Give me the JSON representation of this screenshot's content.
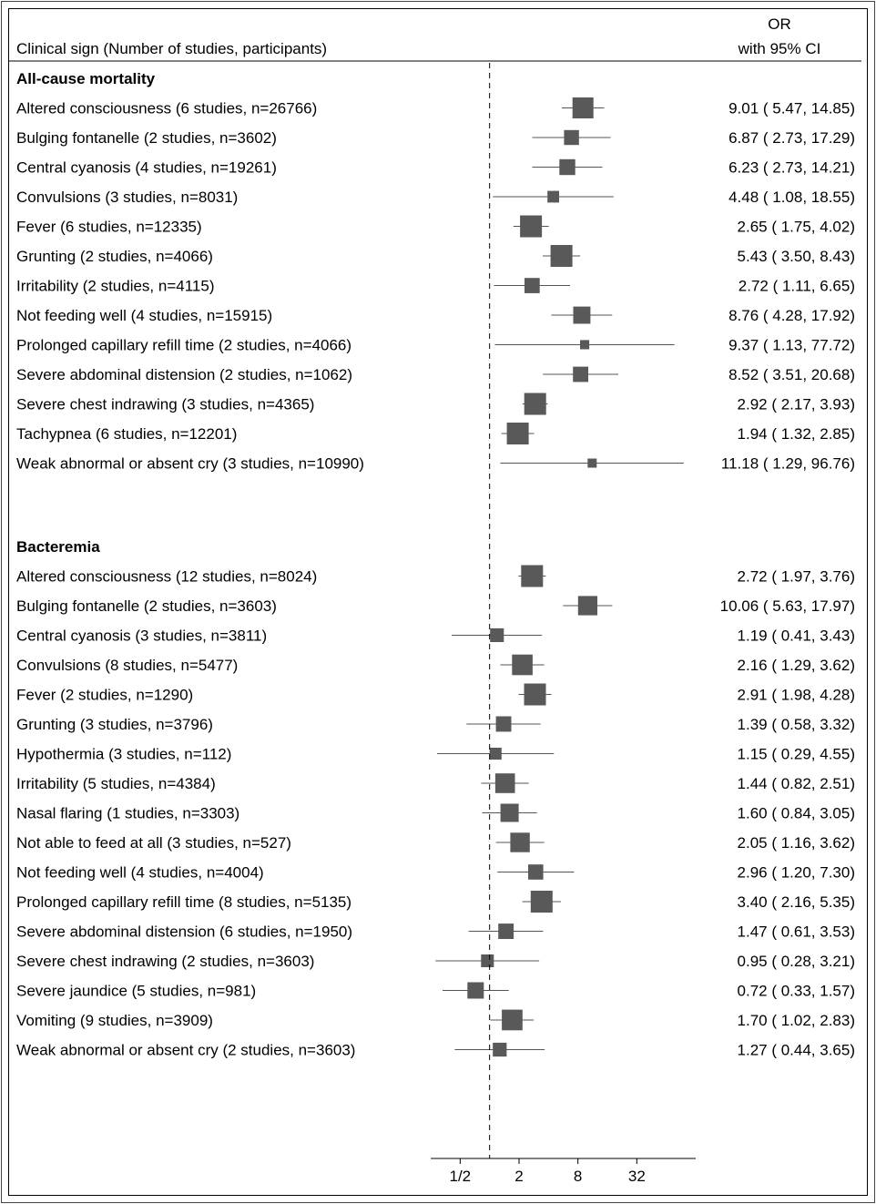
{
  "header": {
    "left": "Clinical sign (Number of studies, participants)",
    "right_line1": "OR",
    "right_line2": "with 95% CI"
  },
  "chart_data": {
    "type": "forest",
    "scale": "log2",
    "null_line": 1,
    "xlim": [
      0.25,
      128
    ],
    "x_ticks": [
      {
        "value": 0.5,
        "label": "1/2"
      },
      {
        "value": 2,
        "label": "2"
      },
      {
        "value": 8,
        "label": "8"
      },
      {
        "value": 32,
        "label": "32"
      }
    ],
    "groups": [
      {
        "title": "All-cause mortality",
        "rows": [
          {
            "label": "Altered consciousness (6 studies, n=26766)",
            "or": 9.01,
            "lo": 5.47,
            "hi": 14.85,
            "text": "9.01 ( 5.47,  14.85)"
          },
          {
            "label": "Bulging fontanelle (2 studies, n=3602)",
            "or": 6.87,
            "lo": 2.73,
            "hi": 17.29,
            "text": "6.87 ( 2.73,  17.29)"
          },
          {
            "label": "Central cyanosis (4 studies, n=19261)",
            "or": 6.23,
            "lo": 2.73,
            "hi": 14.21,
            "text": "6.23 ( 2.73,  14.21)"
          },
          {
            "label": "Convulsions (3 studies, n=8031)",
            "or": 4.48,
            "lo": 1.08,
            "hi": 18.55,
            "text": "4.48 ( 1.08,  18.55)"
          },
          {
            "label": "Fever (6 studies, n=12335)",
            "or": 2.65,
            "lo": 1.75,
            "hi": 4.02,
            "text": "2.65 ( 1.75,    4.02)"
          },
          {
            "label": "Grunting (2 studies, n=4066)",
            "or": 5.43,
            "lo": 3.5,
            "hi": 8.43,
            "text": "5.43 ( 3.50,    8.43)"
          },
          {
            "label": "Irritability (2 studies, n=4115)",
            "or": 2.72,
            "lo": 1.11,
            "hi": 6.65,
            "text": "2.72 ( 1.11,    6.65)"
          },
          {
            "label": "Not feeding well (4 studies, n=15915)",
            "or": 8.76,
            "lo": 4.28,
            "hi": 17.92,
            "text": "8.76 ( 4.28,  17.92)"
          },
          {
            "label": "Prolonged capillary refill time (2 studies, n=4066)",
            "or": 9.37,
            "lo": 1.13,
            "hi": 77.72,
            "text": "9.37 ( 1.13,  77.72)"
          },
          {
            "label": "Severe abdominal distension (2 studies, n=1062)",
            "or": 8.52,
            "lo": 3.51,
            "hi": 20.68,
            "text": "8.52 ( 3.51,  20.68)"
          },
          {
            "label": "Severe chest indrawing (3 studies, n=4365)",
            "or": 2.92,
            "lo": 2.17,
            "hi": 3.93,
            "text": "2.92 ( 2.17,    3.93)"
          },
          {
            "label": "Tachypnea (6 studies, n=12201)",
            "or": 1.94,
            "lo": 1.32,
            "hi": 2.85,
            "text": "1.94 ( 1.32,    2.85)"
          },
          {
            "label": "Weak abnormal or absent cry (3 studies, n=10990)",
            "or": 11.18,
            "lo": 1.29,
            "hi": 96.76,
            "text": "11.18 ( 1.29,  96.76)"
          }
        ]
      },
      {
        "title": "Bacteremia",
        "rows": [
          {
            "label": "Altered consciousness (12 studies, n=8024)",
            "or": 2.72,
            "lo": 1.97,
            "hi": 3.76,
            "text": "2.72 ( 1.97,    3.76)"
          },
          {
            "label": "Bulging fontanelle (2 studies, n=3603)",
            "or": 10.06,
            "lo": 5.63,
            "hi": 17.97,
            "text": "10.06 ( 5.63,  17.97)"
          },
          {
            "label": "Central cyanosis (3 studies, n=3811)",
            "or": 1.19,
            "lo": 0.41,
            "hi": 3.43,
            "text": "1.19 ( 0.41,    3.43)"
          },
          {
            "label": "Convulsions (8 studies, n=5477)",
            "or": 2.16,
            "lo": 1.29,
            "hi": 3.62,
            "text": "2.16 ( 1.29,    3.62)"
          },
          {
            "label": "Fever (2 studies, n=1290)",
            "or": 2.91,
            "lo": 1.98,
            "hi": 4.28,
            "text": "2.91 ( 1.98,    4.28)"
          },
          {
            "label": "Grunting (3 studies, n=3796)",
            "or": 1.39,
            "lo": 0.58,
            "hi": 3.32,
            "text": "1.39 ( 0.58,    3.32)"
          },
          {
            "label": "Hypothermia (3 studies, n=112)",
            "or": 1.15,
            "lo": 0.29,
            "hi": 4.55,
            "text": "1.15 ( 0.29,    4.55)"
          },
          {
            "label": "Irritability (5 studies, n=4384)",
            "or": 1.44,
            "lo": 0.82,
            "hi": 2.51,
            "text": "1.44 ( 0.82,    2.51)"
          },
          {
            "label": "Nasal flaring (1 studies, n=3303)",
            "or": 1.6,
            "lo": 0.84,
            "hi": 3.05,
            "text": "1.60 ( 0.84,    3.05)"
          },
          {
            "label": "Not able to feed at all (3 studies, n=527)",
            "or": 2.05,
            "lo": 1.16,
            "hi": 3.62,
            "text": "2.05 ( 1.16,    3.62)"
          },
          {
            "label": "Not feeding well (4 studies, n=4004)",
            "or": 2.96,
            "lo": 1.2,
            "hi": 7.3,
            "text": "2.96 ( 1.20,    7.30)"
          },
          {
            "label": "Prolonged capillary refill time (8 studies, n=5135)",
            "or": 3.4,
            "lo": 2.16,
            "hi": 5.35,
            "text": "3.40 ( 2.16,    5.35)"
          },
          {
            "label": "Severe abdominal distension (6 studies, n=1950)",
            "or": 1.47,
            "lo": 0.61,
            "hi": 3.53,
            "text": "1.47 ( 0.61,    3.53)"
          },
          {
            "label": "Severe chest indrawing (2 studies, n=3603)",
            "or": 0.95,
            "lo": 0.28,
            "hi": 3.21,
            "text": "0.95 ( 0.28,    3.21)"
          },
          {
            "label": "Severe jaundice (5 studies, n=981)",
            "or": 0.72,
            "lo": 0.33,
            "hi": 1.57,
            "text": "0.72 ( 0.33,    1.57)"
          },
          {
            "label": "Vomiting (9 studies, n=3909)",
            "or": 1.7,
            "lo": 1.02,
            "hi": 2.83,
            "text": "1.70 ( 1.02,    2.83)"
          },
          {
            "label": "Weak abnormal or absent cry (2 studies, n=3603)",
            "or": 1.27,
            "lo": 0.44,
            "hi": 3.65,
            "text": "1.27 ( 0.44,    3.65)"
          }
        ]
      }
    ],
    "colors": {
      "marker": "#595959",
      "line": "#555555",
      "border": "#000000"
    }
  }
}
